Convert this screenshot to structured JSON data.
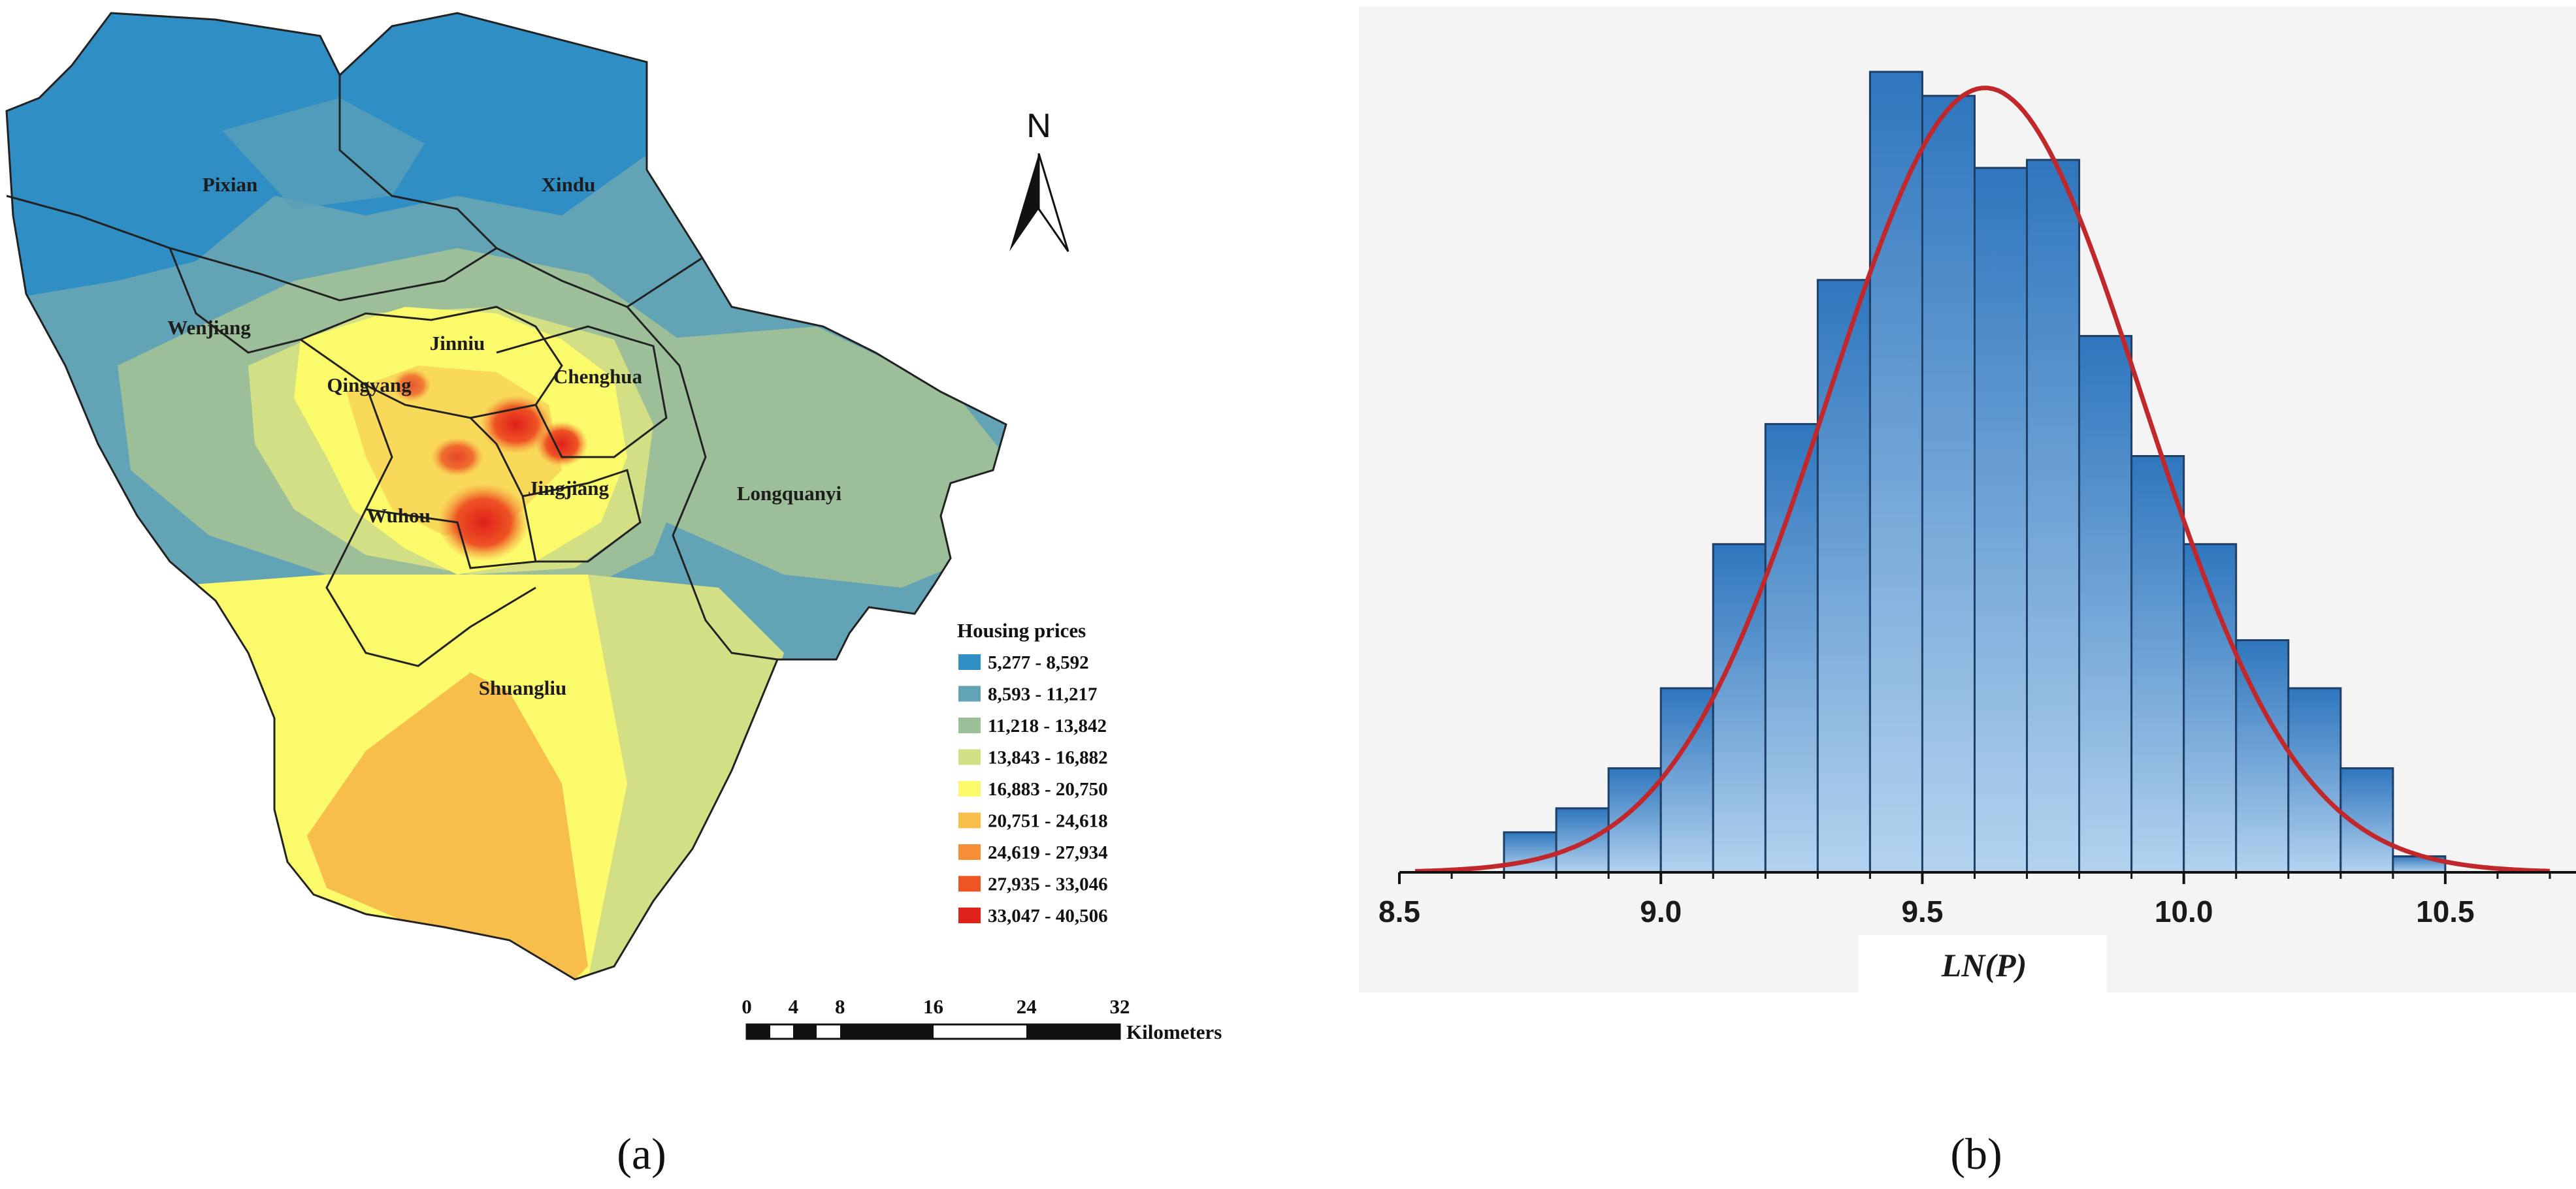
{
  "panels": {
    "a_label": "(a)",
    "b_label": "(b)"
  },
  "map": {
    "north_label": "N",
    "regions": [
      {
        "id": "pixian",
        "name": "Pixian"
      },
      {
        "id": "xindu",
        "name": "Xindu"
      },
      {
        "id": "wenjiang",
        "name": "Wenjiang"
      },
      {
        "id": "jinniu",
        "name": "Jinniu"
      },
      {
        "id": "qingyang",
        "name": "Qingyang"
      },
      {
        "id": "chenghua",
        "name": "Chenghua"
      },
      {
        "id": "wuhou",
        "name": "Wuhou"
      },
      {
        "id": "jingjiang",
        "name": "Jingjiang"
      },
      {
        "id": "longquanyi",
        "name": "Longquanyi"
      },
      {
        "id": "shuangliu",
        "name": "Shuangliu"
      }
    ],
    "legend": {
      "title": "Housing prices",
      "classes": [
        {
          "label": "5,277 - 8,592",
          "color": "#2f8ec4"
        },
        {
          "label": "8,593 - 11,217",
          "color": "#63a3b6"
        },
        {
          "label": "11,218 - 13,842",
          "color": "#9cbf99"
        },
        {
          "label": "13,843 - 16,882",
          "color": "#d3df85"
        },
        {
          "label": "16,883 - 20,750",
          "color": "#fbfa6b"
        },
        {
          "label": "20,751 - 24,618",
          "color": "#f8be4c"
        },
        {
          "label": "24,619 - 27,934",
          "color": "#f68e38"
        },
        {
          "label": "27,935 - 33,046",
          "color": "#ee5424"
        },
        {
          "label": "33,047 - 40,506",
          "color": "#e0201b"
        }
      ]
    },
    "scale_bar": {
      "ticks": [
        "0",
        "4",
        "8",
        "16",
        "24",
        "32"
      ],
      "unit": "Kilometers"
    }
  },
  "chart_data": {
    "type": "bar",
    "subtype": "histogram-with-normal-fit",
    "xlabel": "LN(P)",
    "ylabel": "",
    "xlim": [
      8.5,
      10.75
    ],
    "ylim": [
      0,
      1.0
    ],
    "x_ticks": [
      "8.5",
      "9.0",
      "9.5",
      "10.0",
      "10.5"
    ],
    "bin_width": 0.1,
    "bin_starts": [
      8.7,
      8.8,
      8.9,
      9.0,
      9.1,
      9.2,
      9.3,
      9.4,
      9.5,
      9.6,
      9.7,
      9.8,
      9.9,
      10.0,
      10.1,
      10.2,
      10.3,
      10.4
    ],
    "values": [
      0.05,
      0.08,
      0.13,
      0.23,
      0.41,
      0.56,
      0.74,
      1.0,
      0.97,
      0.88,
      0.89,
      0.67,
      0.52,
      0.41,
      0.29,
      0.23,
      0.13,
      0.02
    ],
    "fit": {
      "type": "normal",
      "mean": 9.62,
      "sd": 0.3,
      "peak": 0.98,
      "x_range": [
        8.53,
        10.7
      ],
      "color": "#c0282b"
    },
    "bar_color": "#3c82c3",
    "grid": false
  }
}
